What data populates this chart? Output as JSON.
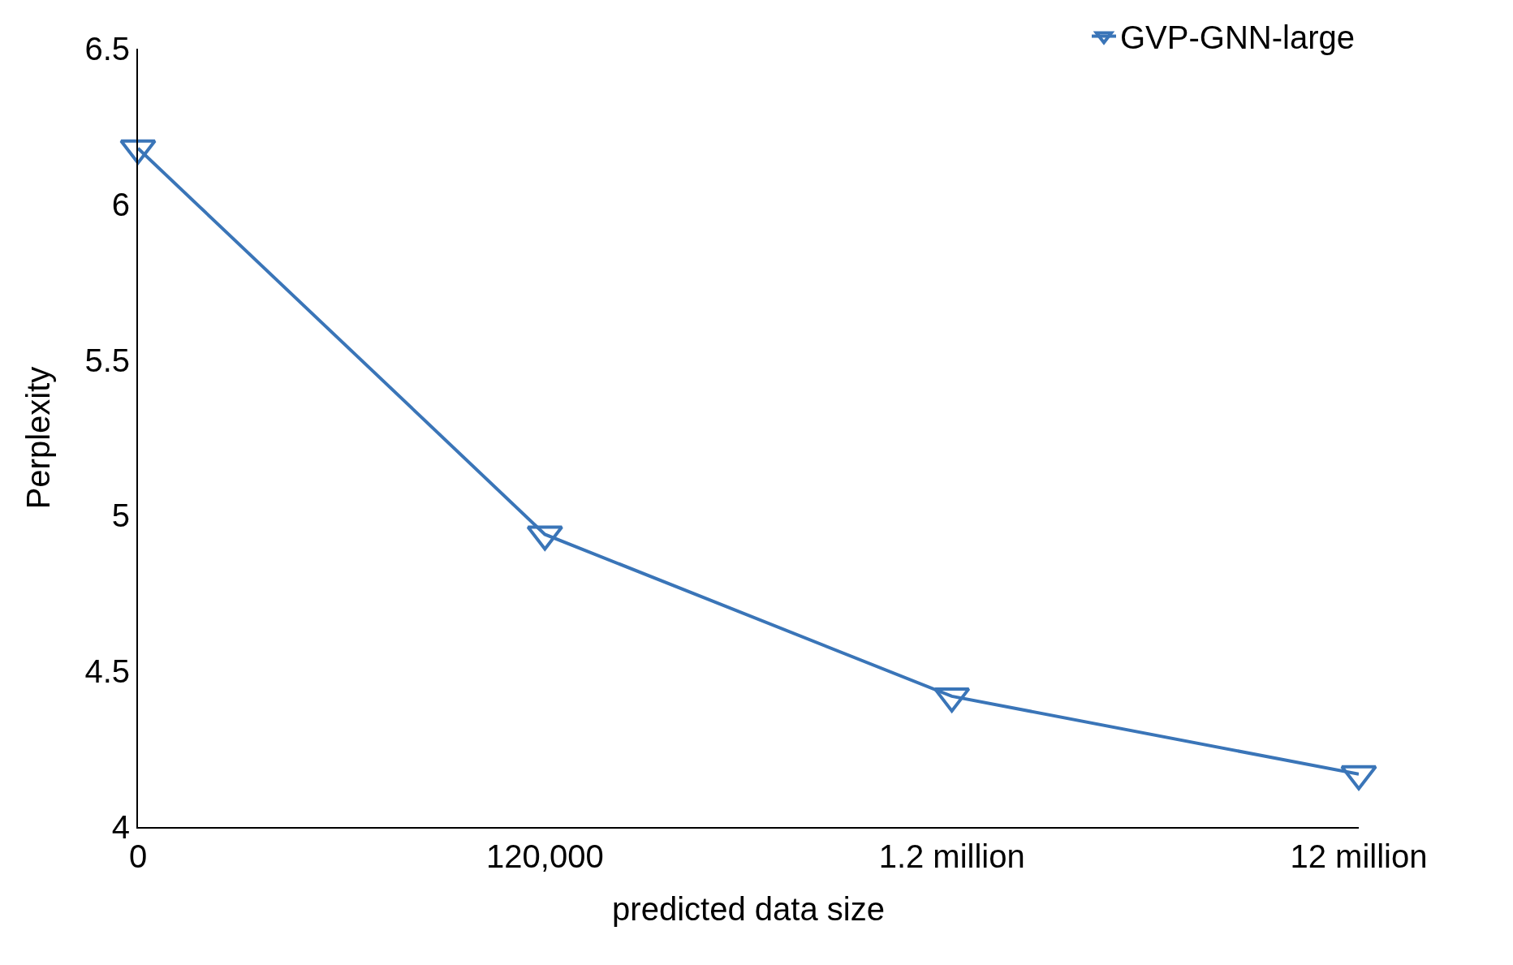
{
  "chart_data": {
    "type": "line",
    "xlabel": "predicted data size",
    "ylabel": "Perplexity",
    "categories": [
      "0",
      "120,000",
      "1.2 million",
      "12 million"
    ],
    "series": [
      {
        "name": "GVP-GNN-large",
        "color": "#3a75b8",
        "values": [
          6.18,
          4.94,
          4.42,
          4.17
        ]
      }
    ],
    "ylim": [
      4,
      6.5
    ],
    "yticks": [
      4,
      4.5,
      5,
      5.5,
      6,
      6.5
    ],
    "legend": "top right",
    "marker": "triangle",
    "line_style": "solid"
  }
}
